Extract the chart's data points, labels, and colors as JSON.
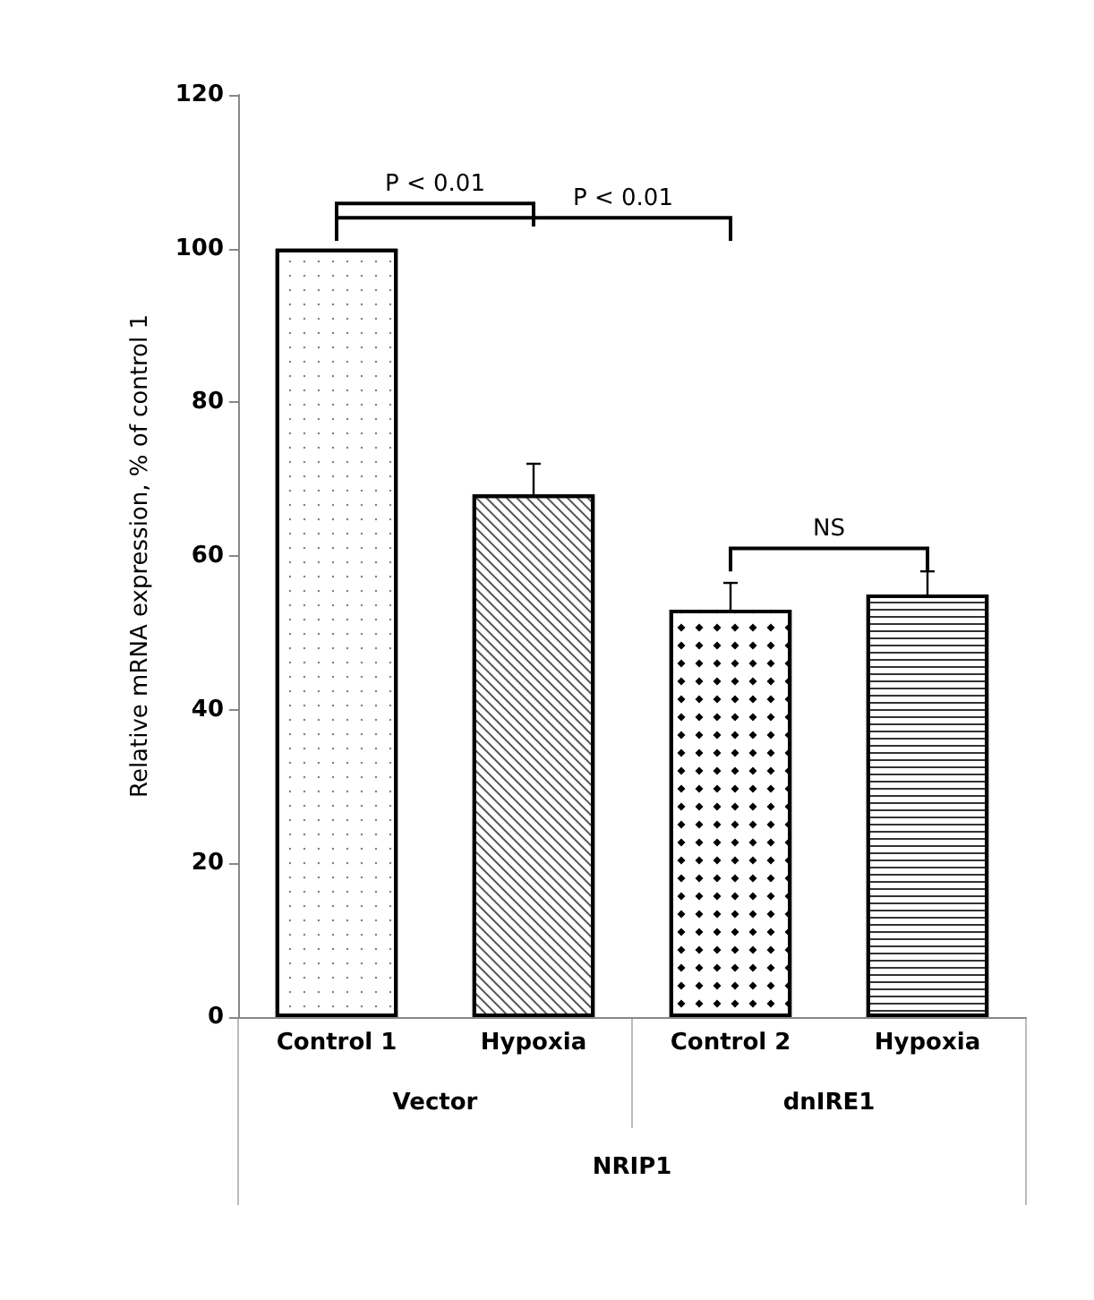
{
  "chart_data": {
    "type": "bar",
    "ylabel": "Relative mRNA expression, % of control 1",
    "xlabel": "NRIP1",
    "categories": [
      "Control 1",
      "Hypoxia",
      "Control 2",
      "Hypoxia"
    ],
    "values": [
      100,
      68,
      53,
      55
    ],
    "errors": [
      null,
      4,
      3.5,
      3
    ],
    "colors": [
      "#ffffff",
      "#ffffff",
      "#ffffff",
      "#ffffff"
    ],
    "ylim": [
      0,
      120
    ],
    "yticks": [
      0,
      20,
      40,
      60,
      80,
      100,
      120
    ],
    "grid": false,
    "annotations": [
      "P < 0.01",
      "P < 0.01",
      "NS",
      "Vector",
      "dnIRE1"
    ]
  }
}
